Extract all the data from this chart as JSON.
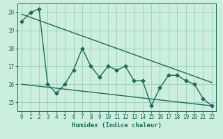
{
  "title": "",
  "xlabel": "Humidex (Indice chaleur)",
  "ylabel": "",
  "bg_color": "#cceedd",
  "line_color": "#1a6b5a",
  "grid_color": "#99ccbb",
  "xlim": [
    -0.5,
    22.5
  ],
  "ylim": [
    14.5,
    20.5
  ],
  "yticks": [
    15,
    16,
    17,
    18,
    19,
    20
  ],
  "xticks": [
    0,
    1,
    2,
    3,
    4,
    5,
    6,
    7,
    8,
    9,
    10,
    11,
    12,
    13,
    14,
    15,
    16,
    17,
    18,
    19,
    20,
    21,
    22
  ],
  "main_x": [
    0,
    1,
    2,
    3,
    4,
    5,
    6,
    7,
    8,
    9,
    10,
    11,
    12,
    13,
    14,
    15,
    16,
    17,
    18,
    19,
    20,
    21,
    22
  ],
  "main_y": [
    19.5,
    20.0,
    20.2,
    16.0,
    15.5,
    16.0,
    16.8,
    18.0,
    17.0,
    16.4,
    17.0,
    16.8,
    17.0,
    16.2,
    16.2,
    14.8,
    15.8,
    16.5,
    16.5,
    16.2,
    16.0,
    15.2,
    14.8
  ],
  "trend1_x": [
    0,
    22
  ],
  "trend1_y": [
    19.9,
    16.1
  ],
  "trend2_x": [
    0,
    22
  ],
  "trend2_y": [
    16.0,
    14.8
  ],
  "marker": "D",
  "markersize": 2.5,
  "linewidth": 1.0
}
